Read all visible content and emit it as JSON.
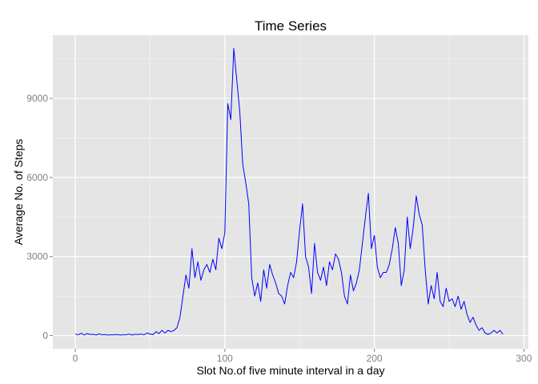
{
  "chart_data": {
    "type": "line",
    "title": "Time Series",
    "xlabel": "Slot No.of five minute interval in a day",
    "ylabel": "Average No. of Steps",
    "xlim": [
      -15,
      303
    ],
    "ylim": [
      -500,
      11400
    ],
    "x_ticks": [
      0,
      100,
      200,
      300
    ],
    "y_ticks": [
      0,
      3000,
      6000,
      9000
    ],
    "x_tick_labels": [
      "0",
      "100",
      "200",
      "300"
    ],
    "y_tick_labels": [
      "0",
      "3000",
      "6000",
      "9000"
    ],
    "grid": true,
    "colors": {
      "panel_background": "#e5e5e5",
      "grid_major": "#ffffff",
      "grid_minor": "#f2f2f2",
      "line": "#0000ff"
    },
    "series": [
      {
        "x": [
          0,
          2,
          4,
          6,
          8,
          10,
          12,
          14,
          16,
          18,
          20,
          22,
          24,
          26,
          28,
          30,
          32,
          34,
          36,
          38,
          40,
          42,
          44,
          46,
          48,
          50,
          52,
          54,
          56,
          58,
          60,
          62,
          64,
          66,
          68,
          70,
          72,
          74,
          76,
          78,
          80,
          82,
          84,
          86,
          88,
          90,
          92,
          94,
          96,
          98,
          100,
          102,
          104,
          106,
          108,
          110,
          112,
          114,
          116,
          118,
          120,
          122,
          124,
          126,
          128,
          130,
          132,
          134,
          136,
          138,
          140,
          142,
          144,
          146,
          148,
          150,
          152,
          154,
          156,
          158,
          160,
          162,
          164,
          166,
          168,
          170,
          172,
          174,
          176,
          178,
          180,
          182,
          184,
          186,
          188,
          190,
          192,
          194,
          196,
          198,
          200,
          202,
          204,
          206,
          208,
          210,
          212,
          214,
          216,
          218,
          220,
          222,
          224,
          226,
          228,
          230,
          232,
          234,
          236,
          238,
          240,
          242,
          244,
          246,
          248,
          250,
          252,
          254,
          256,
          258,
          260,
          262,
          264,
          266,
          268,
          270,
          272,
          274,
          276,
          278,
          280,
          282,
          284,
          286
        ],
        "values": [
          60,
          30,
          90,
          20,
          80,
          40,
          50,
          20,
          70,
          30,
          40,
          20,
          30,
          30,
          40,
          20,
          30,
          30,
          60,
          20,
          50,
          40,
          60,
          30,
          100,
          60,
          40,
          150,
          80,
          200,
          100,
          200,
          150,
          200,
          300,
          700,
          1500,
          2300,
          1800,
          3300,
          2200,
          2800,
          2100,
          2500,
          2700,
          2400,
          2900,
          2500,
          3700,
          3300,
          3900,
          8800,
          8200,
          10900,
          9700,
          8500,
          6500,
          5800,
          5000,
          2200,
          1500,
          2000,
          1300,
          2500,
          1800,
          2700,
          2300,
          2000,
          1600,
          1500,
          1200,
          1900,
          2400,
          2200,
          2800,
          4000,
          5000,
          3000,
          2600,
          1600,
          3500,
          2400,
          2100,
          2600,
          1900,
          2800,
          2500,
          3100,
          2900,
          2400,
          1500,
          1200,
          2300,
          1700,
          2000,
          2500,
          3500,
          4500,
          5400,
          3300,
          3800,
          2600,
          2200,
          2400,
          2400,
          2700,
          3300,
          4100,
          3500,
          1900,
          2500,
          4500,
          3300,
          4100,
          5300,
          4600,
          4200,
          2500,
          1200,
          1900,
          1400,
          2400,
          1300,
          1100,
          1800,
          1300,
          1400,
          1100,
          1500,
          1000,
          1300,
          800,
          500,
          700,
          400,
          200,
          300,
          100,
          50,
          100,
          200,
          100,
          200,
          50
        ]
      }
    ]
  }
}
